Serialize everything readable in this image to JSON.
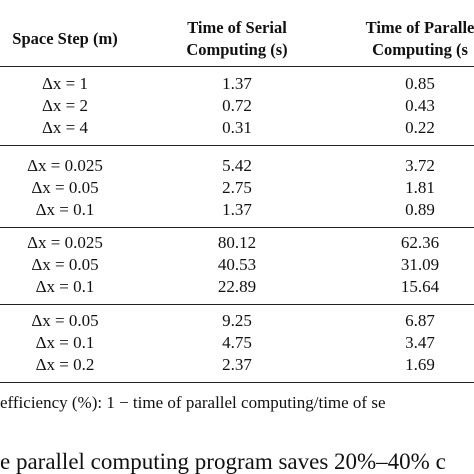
{
  "table": {
    "header": [
      [
        "Space Step (m)"
      ],
      [
        "Time of Serial",
        "Computing (s)"
      ],
      [
        "Time of Paralle",
        "Computing (s"
      ]
    ],
    "groups": [
      {
        "rows": [
          [
            "Δx = 1",
            "1.37",
            "0.85"
          ],
          [
            "Δx = 2",
            "0.72",
            "0.43"
          ],
          [
            "Δx = 4",
            "0.31",
            "0.22"
          ]
        ]
      },
      {
        "rows": [
          [
            "Δx = 0.025",
            "5.42",
            "3.72"
          ],
          [
            "Δx = 0.05",
            "2.75",
            "1.81"
          ],
          [
            "Δx = 0.1",
            "1.37",
            "0.89"
          ]
        ]
      },
      {
        "rows": [
          [
            "Δx = 0.025",
            "80.12",
            "62.36"
          ],
          [
            "Δx = 0.05",
            "40.53",
            "31.09"
          ],
          [
            "Δx = 0.1",
            "22.89",
            "15.64"
          ]
        ]
      },
      {
        "rows": [
          [
            "Δx = 0.05",
            "9.25",
            "6.87"
          ],
          [
            "Δx = 0.1",
            "4.75",
            "3.47"
          ],
          [
            "Δx = 0.2",
            "2.37",
            "1.69"
          ]
        ]
      }
    ],
    "footnote": "efficiency (%): 1 − time of parallel computing/time of se"
  },
  "body_text": "e parallel computing program saves 20%–40% c"
}
